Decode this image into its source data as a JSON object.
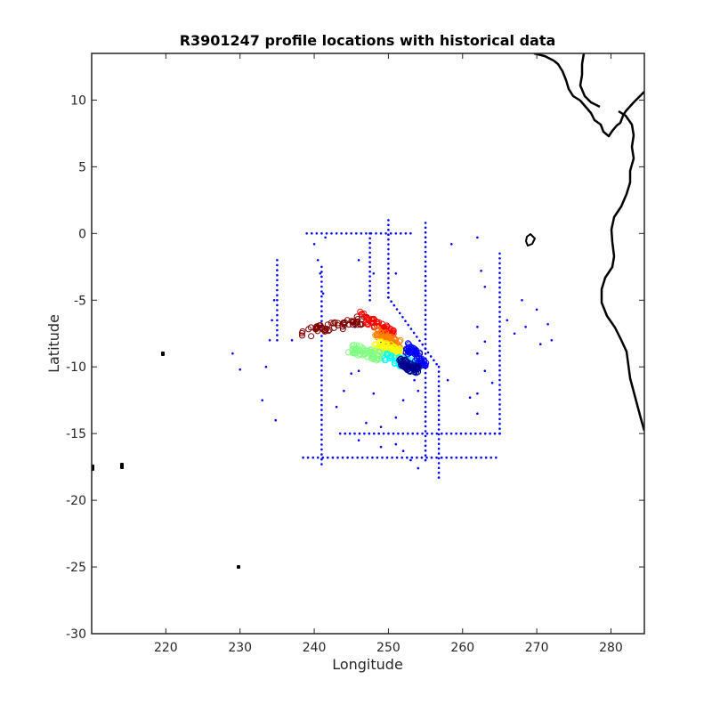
{
  "chart_data": {
    "type": "scatter",
    "title": "R3901247 profile locations with historical data",
    "xlabel": "Longitude",
    "ylabel": "Latitude",
    "xlim": [
      210,
      284.5
    ],
    "ylim": [
      -30,
      13.5
    ],
    "xticks": [
      220,
      230,
      240,
      250,
      260,
      270,
      280
    ],
    "yticks": [
      10,
      5,
      0,
      -5,
      -10,
      -15,
      -20,
      -25,
      -30
    ],
    "grid": false,
    "colors": {
      "historical": "#0000ff",
      "coastline": "#000000",
      "track_colormap": [
        "#00008f",
        "#0000ff",
        "#00ffff",
        "#80ff80",
        "#ffff00",
        "#ff8000",
        "#ff0000",
        "#800000"
      ]
    },
    "series": [
      {
        "role": "historical-profiles",
        "lines": [
          {
            "x": [
              238.5,
              264.5
            ],
            "y": [
              -16.8,
              -16.8
            ]
          },
          {
            "x": [
              243.5,
              265
            ],
            "y": [
              -15,
              -15
            ]
          },
          {
            "x": [
              239,
              253
            ],
            "y": [
              0,
              0
            ]
          },
          {
            "x": [
              250,
              250
            ],
            "y": [
              1,
              -4.8
            ]
          },
          {
            "x": [
              256.8,
              256.8
            ],
            "y": [
              -10,
              -18.3
            ]
          },
          {
            "x": [
              255,
              255
            ],
            "y": [
              0.8,
              -17
            ]
          },
          {
            "x": [
              247.5,
              247.5
            ],
            "y": [
              0,
              -5
            ]
          },
          {
            "x": [
              265,
              265
            ],
            "y": [
              -1.5,
              -15
            ]
          },
          {
            "x": [
              241,
              241
            ],
            "y": [
              -2.5,
              -17.3
            ]
          },
          {
            "x": [
              235,
              235
            ],
            "y": [
              -2,
              -8
            ]
          },
          {
            "x": [
              250,
              256.5
            ],
            "y": [
              -4.8,
              -9.8
            ]
          }
        ],
        "points": {
          "x": [
            234.6,
            234.3,
            234.0,
            233.5,
            233.0,
            234.8,
            229,
            230,
            237,
            245.5,
            246,
            248,
            249,
            252,
            253,
            253.5,
            254,
            258,
            252,
            251,
            258.5,
            262,
            262.5,
            263,
            268,
            270,
            271.5,
            272,
            268.5,
            270.5,
            262,
            263,
            266,
            267,
            245,
            244,
            243,
            247,
            246,
            249,
            249,
            251,
            252,
            253,
            254,
            262,
            263,
            262,
            264,
            261,
            262,
            251,
            248,
            246,
            240.5,
            240.8,
            241.2,
            240,
            241.5
          ],
          "y": [
            -5,
            -6.5,
            -8,
            -10,
            -12.5,
            -14,
            -9,
            -10.2,
            -8,
            -7,
            -10.3,
            -12,
            -8.2,
            -9,
            -10.5,
            -11,
            -11.8,
            -11,
            -12.5,
            -13.8,
            -0.8,
            -0.3,
            -2.8,
            -4,
            -5,
            -5.7,
            -6.8,
            -8,
            -7,
            -8.3,
            -7,
            -8.1,
            -6.5,
            -7.5,
            -10.5,
            -11.8,
            -13,
            -14.2,
            -15.5,
            -14.5,
            -16,
            -15.8,
            -16.3,
            -17,
            -17.6,
            -9,
            -10.3,
            -12,
            -11.2,
            -12.3,
            -13.5,
            -3,
            -3,
            -2,
            -2,
            -3,
            -4.5,
            -0.8,
            -0.3
          ]
        }
      },
      {
        "role": "float-profiles",
        "segments": [
          {
            "color": "#800000",
            "x": [
              238.5,
              247
            ],
            "y": [
              -7.5,
              -6.4
            ]
          },
          {
            "color": "#ff0000",
            "x": [
              246.5,
              250.5
            ],
            "y": [
              -6.2,
              -7.5
            ]
          },
          {
            "color": "#ff8000",
            "x": [
              248.5,
              251.5
            ],
            "y": [
              -7.4,
              -8.4
            ]
          },
          {
            "color": "#ffff00",
            "x": [
              248.5,
              251.5
            ],
            "y": [
              -8.3,
              -9.0
            ]
          },
          {
            "color": "#80ff80",
            "x": [
              245,
              249.5
            ],
            "y": [
              -8.6,
              -9.3
            ]
          },
          {
            "color": "#00ffff",
            "x": [
              249.5,
              254
            ],
            "y": [
              -9.2,
              -10.0
            ]
          },
          {
            "color": "#0000ff",
            "x": [
              252.5,
              255
            ],
            "y": [
              -8.5,
              -9.8
            ]
          },
          {
            "color": "#00008f",
            "x": [
              251.5,
              254
            ],
            "y": [
              -9.6,
              -10.3
            ]
          }
        ]
      }
    ]
  }
}
